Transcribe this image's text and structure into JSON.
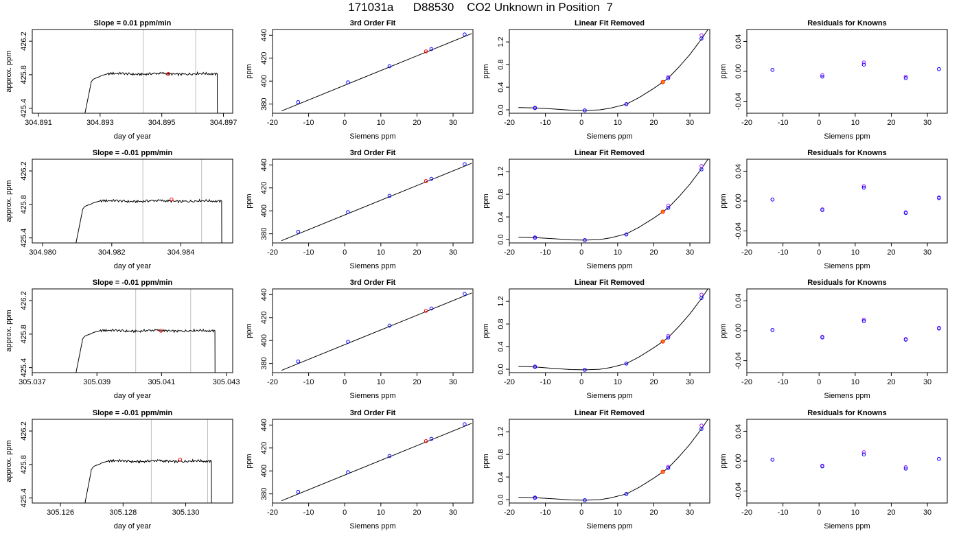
{
  "figure_title": "171031a      D88530    CO2 Unknown in Position  7",
  "colors": {
    "known_open": "#0000ff",
    "known_alt": "#a020f0",
    "unknown": "#ff0000",
    "unknown_fill": "#ff7f00",
    "guide": "#bebebe",
    "line": "#000000"
  },
  "chart_data": [
    {
      "row": 0,
      "type": "line",
      "title": "Slope =  0.01  ppm/min",
      "xlabel": "day of year",
      "ylabel": "approx. ppm",
      "xlim": [
        304.8908,
        304.8973
      ],
      "ylim": [
        425.34,
        426.34
      ],
      "xticks": [
        "304.891",
        "304.893",
        "304.895",
        "304.897"
      ],
      "yticks": [
        "425.4",
        "425.8",
        "426.2"
      ],
      "vlines": [
        304.8944,
        304.8961
      ],
      "plateau": 425.81,
      "rise_start": 304.8924,
      "rise_end": 304.8927,
      "drop": 304.8968,
      "marker": {
        "x": 304.89521,
        "y": 425.81
      }
    },
    {
      "row": 0,
      "type": "line",
      "title": "3rd Order Fit",
      "xlabel": "Siemens ppm",
      "ylabel": "ppm",
      "xlim": [
        -20,
        35.5
      ],
      "ylim": [
        372,
        445
      ],
      "xticks": [
        "-20",
        "-10",
        "0",
        "10",
        "20",
        "30"
      ],
      "yticks": [
        "380",
        "400",
        "420",
        "440"
      ],
      "fit": {
        "x0": -17.5,
        "x1": 35.2,
        "y0": 374.0,
        "y1": 441.5
      },
      "knowns": [
        {
          "x": -12.9,
          "y": 381.7
        },
        {
          "x": 0.9,
          "y": 398.9
        },
        {
          "x": 12.4,
          "y": 413.0
        },
        {
          "x": 24.0,
          "y": 427.9
        },
        {
          "x": 33.2,
          "y": 440.7
        }
      ],
      "unknown": {
        "x": 22.5,
        "y": 425.9
      }
    },
    {
      "row": 0,
      "type": "line",
      "title": "Linear Fit Removed",
      "xlabel": "Siemens ppm",
      "ylabel": "ppm",
      "xlim": [
        -20,
        35.5
      ],
      "ylim": [
        -0.06,
        1.42
      ],
      "xticks": [
        "-20",
        "-10",
        "0",
        "10",
        "20",
        "30"
      ],
      "yticks": [
        "0.0",
        "0.4",
        "0.8",
        "1.2"
      ],
      "curve": [
        [
          -17.5,
          0.04
        ],
        [
          -12.9,
          0.035
        ],
        [
          -8,
          0.015
        ],
        [
          -3,
          -0.005
        ],
        [
          0.9,
          -0.01
        ],
        [
          5,
          0.0
        ],
        [
          8,
          0.03
        ],
        [
          12.4,
          0.1
        ],
        [
          16,
          0.22
        ],
        [
          20,
          0.38
        ],
        [
          22.5,
          0.49
        ],
        [
          24.0,
          0.56
        ],
        [
          27,
          0.76
        ],
        [
          30,
          0.98
        ],
        [
          33.2,
          1.25
        ],
        [
          35.0,
          1.42
        ]
      ],
      "knowns": [
        {
          "x": -12.9,
          "y": 0.03
        },
        {
          "x": 0.9,
          "y": -0.01
        },
        {
          "x": 12.4,
          "y": 0.1
        },
        {
          "x": 24.0,
          "y": 0.56
        },
        {
          "x": 33.2,
          "y": 1.26
        }
      ],
      "knowns_alt": [
        {
          "x": -12.9,
          "y": 0.04
        },
        {
          "x": 0.9,
          "y": -0.01
        },
        {
          "x": 12.4,
          "y": 0.1
        },
        {
          "x": 24.0,
          "y": 0.58
        },
        {
          "x": 33.2,
          "y": 1.32
        }
      ],
      "unknown": {
        "x": 22.5,
        "y": 0.49
      }
    },
    {
      "row": 0,
      "type": "scatter",
      "title": "Residuals for Knowns",
      "xlabel": "Siemens ppm",
      "ylabel": "ppm",
      "xlim": [
        -20,
        35.5
      ],
      "ylim": [
        -0.056,
        0.056
      ],
      "xticks": [
        "-20",
        "-10",
        "0",
        "10",
        "20",
        "30"
      ],
      "yticks": [
        "-0.04",
        "0.00",
        "0.04"
      ],
      "knowns": [
        {
          "x": -12.9,
          "y": 0.002
        },
        {
          "x": 0.9,
          "y": -0.007
        },
        {
          "x": 12.4,
          "y": 0.009
        },
        {
          "x": 24.0,
          "y": -0.009
        },
        {
          "x": 33.2,
          "y": 0.003
        }
      ],
      "knowns_alt": [
        {
          "x": -12.9,
          "y": 0.002
        },
        {
          "x": 0.9,
          "y": -0.005
        },
        {
          "x": 12.4,
          "y": 0.012
        },
        {
          "x": 24.0,
          "y": -0.007
        },
        {
          "x": 33.2,
          "y": 0.003
        }
      ]
    },
    {
      "row": 1,
      "type": "line",
      "title": "Slope =  -0.01  ppm/min",
      "xlabel": "day of year",
      "ylabel": "approx. ppm",
      "xlim": [
        304.9797,
        304.9855
      ],
      "ylim": [
        425.34,
        426.34
      ],
      "xticks": [
        "304.980",
        "304.982",
        "304.984"
      ],
      "yticks": [
        "425.4",
        "425.8",
        "426.2"
      ],
      "vlines": [
        304.9829,
        304.9846
      ],
      "plateau": 425.84,
      "rise_start": 304.98087,
      "rise_end": 304.98115,
      "drop": 304.98518,
      "marker": {
        "x": 304.98373,
        "y": 425.86
      }
    },
    {
      "row": 1,
      "type": "line",
      "title": "3rd Order Fit",
      "xlabel": "Siemens ppm",
      "ylabel": "ppm",
      "xlim": [
        -20,
        35.5
      ],
      "ylim": [
        372,
        445
      ],
      "xticks": [
        "-20",
        "-10",
        "0",
        "10",
        "20",
        "30"
      ],
      "yticks": [
        "380",
        "400",
        "420",
        "440"
      ],
      "fit": {
        "x0": -17.5,
        "x1": 35.2,
        "y0": 374.0,
        "y1": 441.5
      },
      "knowns": [
        {
          "x": -12.9,
          "y": 381.7
        },
        {
          "x": 0.9,
          "y": 398.9
        },
        {
          "x": 12.4,
          "y": 413.0
        },
        {
          "x": 24.0,
          "y": 427.9
        },
        {
          "x": 33.2,
          "y": 440.7
        }
      ],
      "unknown": {
        "x": 22.5,
        "y": 426.0
      }
    },
    {
      "row": 1,
      "type": "line",
      "title": "Linear Fit Removed",
      "xlabel": "Siemens ppm",
      "ylabel": "ppm",
      "xlim": [
        -20,
        35.5
      ],
      "ylim": [
        -0.06,
        1.42
      ],
      "xticks": [
        "-20",
        "-10",
        "0",
        "10",
        "20",
        "30"
      ],
      "yticks": [
        "0.0",
        "0.4",
        "0.8",
        "1.2"
      ],
      "curve": [
        [
          -17.5,
          0.04
        ],
        [
          -12.9,
          0.035
        ],
        [
          -8,
          0.015
        ],
        [
          -3,
          -0.005
        ],
        [
          0.9,
          -0.01
        ],
        [
          5,
          0.0
        ],
        [
          8,
          0.03
        ],
        [
          12.4,
          0.1
        ],
        [
          16,
          0.22
        ],
        [
          20,
          0.38
        ],
        [
          22.5,
          0.49
        ],
        [
          24.0,
          0.56
        ],
        [
          27,
          0.76
        ],
        [
          30,
          0.98
        ],
        [
          33.2,
          1.25
        ],
        [
          35.0,
          1.42
        ]
      ],
      "knowns": [
        {
          "x": -12.9,
          "y": 0.03
        },
        {
          "x": 0.9,
          "y": -0.01
        },
        {
          "x": 12.4,
          "y": 0.09
        },
        {
          "x": 24.0,
          "y": 0.56
        },
        {
          "x": 33.2,
          "y": 1.24
        }
      ],
      "knowns_alt": [
        {
          "x": -12.9,
          "y": 0.04
        },
        {
          "x": 0.9,
          "y": -0.01
        },
        {
          "x": 12.4,
          "y": 0.09
        },
        {
          "x": 24.0,
          "y": 0.6
        },
        {
          "x": 33.2,
          "y": 1.3
        }
      ],
      "unknown": {
        "x": 22.5,
        "y": 0.49
      }
    },
    {
      "row": 1,
      "type": "scatter",
      "title": "Residuals for Knowns",
      "xlabel": "Siemens ppm",
      "ylabel": "ppm",
      "xlim": [
        -20,
        35.5
      ],
      "ylim": [
        -0.056,
        0.056
      ],
      "xticks": [
        "-20",
        "-10",
        "0",
        "10",
        "20",
        "30"
      ],
      "yticks": [
        "-0.04",
        "0.00",
        "0.04"
      ],
      "knowns": [
        {
          "x": -12.9,
          "y": 0.002
        },
        {
          "x": 0.9,
          "y": -0.012
        },
        {
          "x": 12.4,
          "y": 0.018
        },
        {
          "x": 24.0,
          "y": -0.016
        },
        {
          "x": 33.2,
          "y": 0.004
        }
      ],
      "knowns_alt": [
        {
          "x": -12.9,
          "y": 0.002
        },
        {
          "x": 0.9,
          "y": -0.011
        },
        {
          "x": 12.4,
          "y": 0.02
        },
        {
          "x": 24.0,
          "y": -0.015
        },
        {
          "x": 33.2,
          "y": 0.005
        }
      ]
    },
    {
      "row": 2,
      "type": "line",
      "title": "Slope =  -0.01  ppm/min",
      "xlabel": "day of year",
      "ylabel": "approx. ppm",
      "xlim": [
        305.037,
        305.0432
      ],
      "ylim": [
        425.34,
        426.34
      ],
      "xticks": [
        "305.037",
        "305.039",
        "305.041",
        "305.043"
      ],
      "yticks": [
        "425.4",
        "425.8",
        "426.2"
      ],
      "vlines": [
        305.0402,
        305.0419
      ],
      "plateau": 425.84,
      "rise_start": 305.03825,
      "rise_end": 305.03855,
      "drop": 305.04265,
      "marker": {
        "x": 305.04098,
        "y": 425.84
      }
    },
    {
      "row": 2,
      "type": "line",
      "title": "3rd Order Fit",
      "xlabel": "Siemens ppm",
      "ylabel": "ppm",
      "xlim": [
        -20,
        35.5
      ],
      "ylim": [
        372,
        445
      ],
      "xticks": [
        "-20",
        "-10",
        "0",
        "10",
        "20",
        "30"
      ],
      "yticks": [
        "380",
        "400",
        "420",
        "440"
      ],
      "fit": {
        "x0": -17.5,
        "x1": 35.2,
        "y0": 374.0,
        "y1": 441.5
      },
      "knowns": [
        {
          "x": -12.9,
          "y": 381.7
        },
        {
          "x": 0.9,
          "y": 398.9
        },
        {
          "x": 12.4,
          "y": 413.0
        },
        {
          "x": 24.0,
          "y": 427.9
        },
        {
          "x": 33.2,
          "y": 440.7
        }
      ],
      "unknown": {
        "x": 22.5,
        "y": 425.9
      }
    },
    {
      "row": 2,
      "type": "line",
      "title": "Linear Fit Removed",
      "xlabel": "Siemens ppm",
      "ylabel": "ppm",
      "xlim": [
        -20,
        35.5
      ],
      "ylim": [
        -0.06,
        1.42
      ],
      "xticks": [
        "-20",
        "-10",
        "0",
        "10",
        "20",
        "30"
      ],
      "yticks": [
        "0.0",
        "0.4",
        "0.8",
        "1.2"
      ],
      "curve": [
        [
          -17.5,
          0.05
        ],
        [
          -12.9,
          0.04
        ],
        [
          -8,
          0.015
        ],
        [
          -3,
          -0.005
        ],
        [
          0.9,
          -0.01
        ],
        [
          5,
          0.0
        ],
        [
          8,
          0.03
        ],
        [
          12.4,
          0.1
        ],
        [
          16,
          0.22
        ],
        [
          20,
          0.38
        ],
        [
          22.5,
          0.49
        ],
        [
          24.0,
          0.56
        ],
        [
          27,
          0.76
        ],
        [
          30,
          0.98
        ],
        [
          33.2,
          1.25
        ],
        [
          35.0,
          1.42
        ]
      ],
      "knowns": [
        {
          "x": -12.9,
          "y": 0.04
        },
        {
          "x": 0.9,
          "y": -0.01
        },
        {
          "x": 12.4,
          "y": 0.1
        },
        {
          "x": 24.0,
          "y": 0.56
        },
        {
          "x": 33.2,
          "y": 1.26
        }
      ],
      "knowns_alt": [
        {
          "x": -12.9,
          "y": 0.05
        },
        {
          "x": 0.9,
          "y": -0.01
        },
        {
          "x": 12.4,
          "y": 0.1
        },
        {
          "x": 24.0,
          "y": 0.59
        },
        {
          "x": 33.2,
          "y": 1.32
        }
      ],
      "unknown": {
        "x": 22.5,
        "y": 0.49
      }
    },
    {
      "row": 2,
      "type": "scatter",
      "title": "Residuals for Knowns",
      "xlabel": "Siemens ppm",
      "ylabel": "ppm",
      "xlim": [
        -20,
        35.5
      ],
      "ylim": [
        -0.056,
        0.056
      ],
      "xticks": [
        "-20",
        "-10",
        "0",
        "10",
        "20",
        "30"
      ],
      "yticks": [
        "-0.04",
        "0.00",
        "0.04"
      ],
      "knowns": [
        {
          "x": -12.9,
          "y": 0.001
        },
        {
          "x": 0.9,
          "y": -0.009
        },
        {
          "x": 12.4,
          "y": 0.013
        },
        {
          "x": 24.0,
          "y": -0.012
        },
        {
          "x": 33.2,
          "y": 0.003
        }
      ],
      "knowns_alt": [
        {
          "x": -12.9,
          "y": 0.001
        },
        {
          "x": 0.9,
          "y": -0.008
        },
        {
          "x": 12.4,
          "y": 0.015
        },
        {
          "x": 24.0,
          "y": -0.011
        },
        {
          "x": 33.2,
          "y": 0.004
        }
      ]
    },
    {
      "row": 3,
      "type": "line",
      "title": "Slope =  -0.01  ppm/min",
      "xlabel": "day of year",
      "ylabel": "approx. ppm",
      "xlim": [
        305.1251,
        305.1315
      ],
      "ylim": [
        425.34,
        426.34
      ],
      "xticks": [
        "305.126",
        "305.128",
        "305.130"
      ],
      "yticks": [
        "425.4",
        "425.8",
        "426.2"
      ],
      "vlines": [
        305.1289,
        305.1307
      ],
      "plateau": 425.84,
      "rise_start": 305.12668,
      "rise_end": 305.12698,
      "drop": 305.13082,
      "marker": {
        "x": 305.12982,
        "y": 425.86
      }
    },
    {
      "row": 3,
      "type": "line",
      "title": "3rd Order Fit",
      "xlabel": "Siemens ppm",
      "ylabel": "ppm",
      "xlim": [
        -20,
        35.5
      ],
      "ylim": [
        372,
        445
      ],
      "xticks": [
        "-20",
        "-10",
        "0",
        "10",
        "20",
        "30"
      ],
      "yticks": [
        "380",
        "400",
        "420",
        "440"
      ],
      "fit": {
        "x0": -17.5,
        "x1": 35.2,
        "y0": 374.0,
        "y1": 441.5
      },
      "knowns": [
        {
          "x": -12.9,
          "y": 381.7
        },
        {
          "x": 0.9,
          "y": 398.9
        },
        {
          "x": 12.4,
          "y": 413.0
        },
        {
          "x": 24.0,
          "y": 427.9
        },
        {
          "x": 33.2,
          "y": 440.7
        }
      ],
      "unknown": {
        "x": 22.5,
        "y": 426.0
      }
    },
    {
      "row": 3,
      "type": "line",
      "title": "Linear Fit Removed",
      "xlabel": "Siemens ppm",
      "ylabel": "ppm",
      "xlim": [
        -20,
        35.5
      ],
      "ylim": [
        -0.06,
        1.42
      ],
      "xticks": [
        "-20",
        "-10",
        "0",
        "10",
        "20",
        "30"
      ],
      "yticks": [
        "0.0",
        "0.4",
        "0.8",
        "1.2"
      ],
      "curve": [
        [
          -17.5,
          0.04
        ],
        [
          -12.9,
          0.035
        ],
        [
          -8,
          0.015
        ],
        [
          -3,
          -0.005
        ],
        [
          0.9,
          -0.01
        ],
        [
          5,
          0.0
        ],
        [
          8,
          0.03
        ],
        [
          12.4,
          0.1
        ],
        [
          16,
          0.22
        ],
        [
          20,
          0.38
        ],
        [
          22.5,
          0.49
        ],
        [
          24.0,
          0.56
        ],
        [
          27,
          0.76
        ],
        [
          30,
          0.98
        ],
        [
          33.2,
          1.25
        ],
        [
          35.0,
          1.42
        ]
      ],
      "knowns": [
        {
          "x": -12.9,
          "y": 0.03
        },
        {
          "x": 0.9,
          "y": -0.01
        },
        {
          "x": 12.4,
          "y": 0.1
        },
        {
          "x": 24.0,
          "y": 0.56
        },
        {
          "x": 33.2,
          "y": 1.25
        }
      ],
      "knowns_alt": [
        {
          "x": -12.9,
          "y": 0.04
        },
        {
          "x": 0.9,
          "y": -0.01
        },
        {
          "x": 12.4,
          "y": 0.1
        },
        {
          "x": 24.0,
          "y": 0.58
        },
        {
          "x": 33.2,
          "y": 1.31
        }
      ],
      "unknown": {
        "x": 22.5,
        "y": 0.49
      }
    },
    {
      "row": 3,
      "type": "scatter",
      "title": "Residuals for Knowns",
      "xlabel": "Siemens ppm",
      "ylabel": "ppm",
      "xlim": [
        -20,
        35.5
      ],
      "ylim": [
        -0.056,
        0.056
      ],
      "xticks": [
        "-20",
        "-10",
        "0",
        "10",
        "20",
        "30"
      ],
      "yticks": [
        "-0.04",
        "0.00",
        "0.04"
      ],
      "knowns": [
        {
          "x": -12.9,
          "y": 0.002
        },
        {
          "x": 0.9,
          "y": -0.007
        },
        {
          "x": 12.4,
          "y": 0.009
        },
        {
          "x": 24.0,
          "y": -0.01
        },
        {
          "x": 33.2,
          "y": 0.003
        }
      ],
      "knowns_alt": [
        {
          "x": -12.9,
          "y": 0.002
        },
        {
          "x": 0.9,
          "y": -0.006
        },
        {
          "x": 12.4,
          "y": 0.012
        },
        {
          "x": 24.0,
          "y": -0.008
        },
        {
          "x": 33.2,
          "y": 0.003
        }
      ]
    }
  ]
}
